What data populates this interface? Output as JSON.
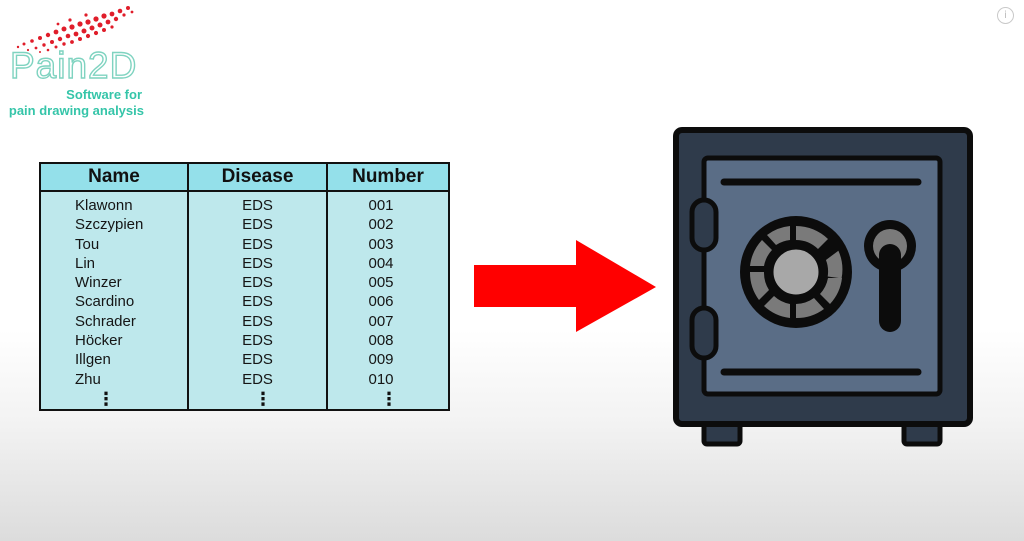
{
  "logo": {
    "brand": "Pain2D",
    "subtitle_line1": "Software for",
    "subtitle_line2": "pain drawing analysis"
  },
  "info_button": {
    "icon": "info-icon",
    "glyph": "i"
  },
  "table": {
    "headers": [
      "Name",
      "Disease",
      "Number"
    ],
    "rows": [
      [
        "Klawonn",
        "EDS",
        "001"
      ],
      [
        "Szczypien",
        "EDS",
        "002"
      ],
      [
        "Tou",
        "EDS",
        "003"
      ],
      [
        "Lin",
        "EDS",
        "004"
      ],
      [
        "Winzer",
        "EDS",
        "005"
      ],
      [
        "Scardino",
        "EDS",
        "006"
      ],
      [
        "Schrader",
        "EDS",
        "007"
      ],
      [
        "Höcker",
        "EDS",
        "008"
      ],
      [
        "Illgen",
        "EDS",
        "009"
      ],
      [
        "Zhu",
        "EDS",
        "010"
      ]
    ],
    "continuation": "⋮"
  },
  "colors": {
    "arrow": "#ff0000",
    "safe_body": "#2f3b4b",
    "safe_door": "#5a6d86",
    "table_header": "#94e0ea",
    "table_body": "#bee8ec",
    "logo_accent": "#35c5a9",
    "logo_dots": "#e01d2a"
  },
  "icons": {
    "arrow": "arrow-right-icon",
    "safe": "safe-icon"
  }
}
